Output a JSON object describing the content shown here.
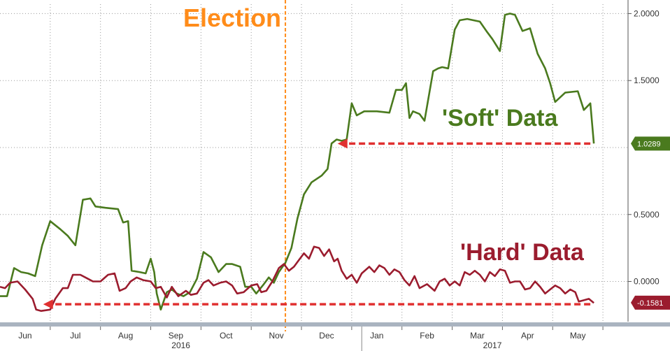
{
  "chart_data": {
    "type": "line",
    "annotations": {
      "event_label": "Election",
      "soft_label": "'Soft' Data",
      "hard_label": "'Hard' Data"
    },
    "colors": {
      "soft": "#4a7a1e",
      "hard": "#9b1c2e",
      "election": "#ff8c1a",
      "arrow": "#e03030",
      "grid": "#9a9a9a"
    },
    "y_axis": {
      "position": "right",
      "ticks": [
        {
          "v": 2.0,
          "label": "2.0000"
        },
        {
          "v": 1.5,
          "label": "1.5000"
        },
        {
          "v": 0.5,
          "label": "0.5000"
        },
        {
          "v": 0.0,
          "label": "0.0000"
        }
      ],
      "grid_values": [
        2.0,
        1.5,
        1.0,
        0.5,
        0.0
      ],
      "ylim": [
        -0.3,
        2.07
      ]
    },
    "x_axis": {
      "xlim": [
        0,
        12.5
      ],
      "months": [
        {
          "x": 0.5,
          "label": "Jun"
        },
        {
          "x": 1.5,
          "label": "Jul"
        },
        {
          "x": 2.5,
          "label": "Aug"
        },
        {
          "x": 3.5,
          "label": "Sep"
        },
        {
          "x": 4.5,
          "label": "Oct"
        },
        {
          "x": 5.5,
          "label": "Nov"
        },
        {
          "x": 6.5,
          "label": "Dec"
        },
        {
          "x": 7.5,
          "label": "Jan"
        },
        {
          "x": 8.5,
          "label": "Feb"
        },
        {
          "x": 9.5,
          "label": "Mar"
        },
        {
          "x": 10.5,
          "label": "Apr"
        },
        {
          "x": 11.5,
          "label": "May"
        }
      ],
      "years": [
        {
          "x": 3.6,
          "label": "2016"
        },
        {
          "x": 9.8,
          "label": "2017"
        }
      ],
      "year_divider": 7.2
    },
    "event_x": 5.68,
    "series": [
      {
        "name": "'Soft' Data",
        "last_value_label": "1.0289",
        "last": 1.0289,
        "points": [
          [
            0.0,
            -0.11
          ],
          [
            0.14,
            -0.11
          ],
          [
            0.28,
            0.1
          ],
          [
            0.42,
            0.07
          ],
          [
            0.56,
            0.06
          ],
          [
            0.7,
            0.04
          ],
          [
            0.84,
            0.27
          ],
          [
            1.0,
            0.45
          ],
          [
            1.2,
            0.39
          ],
          [
            1.35,
            0.34
          ],
          [
            1.5,
            0.27
          ],
          [
            1.65,
            0.61
          ],
          [
            1.8,
            0.62
          ],
          [
            1.9,
            0.56
          ],
          [
            2.1,
            0.55
          ],
          [
            2.35,
            0.54
          ],
          [
            2.45,
            0.44
          ],
          [
            2.55,
            0.45
          ],
          [
            2.62,
            0.08
          ],
          [
            2.78,
            0.07
          ],
          [
            2.9,
            0.06
          ],
          [
            3.0,
            0.17
          ],
          [
            3.07,
            0.07
          ],
          [
            3.12,
            -0.09
          ],
          [
            3.2,
            -0.21
          ],
          [
            3.32,
            -0.08
          ],
          [
            3.42,
            -0.06
          ],
          [
            3.52,
            -0.09
          ],
          [
            3.65,
            -0.11
          ],
          [
            3.78,
            -0.08
          ],
          [
            3.92,
            0.02
          ],
          [
            4.05,
            0.22
          ],
          [
            4.2,
            0.18
          ],
          [
            4.35,
            0.07
          ],
          [
            4.5,
            0.13
          ],
          [
            4.62,
            0.13
          ],
          [
            4.78,
            0.11
          ],
          [
            4.88,
            -0.04
          ],
          [
            5.0,
            -0.04
          ],
          [
            5.1,
            -0.09
          ],
          [
            5.25,
            -0.02
          ],
          [
            5.35,
            0.03
          ],
          [
            5.45,
            -0.01
          ],
          [
            5.55,
            0.07
          ],
          [
            5.68,
            0.14
          ],
          [
            5.8,
            0.25
          ],
          [
            5.92,
            0.47
          ],
          [
            6.05,
            0.65
          ],
          [
            6.2,
            0.74
          ],
          [
            6.4,
            0.79
          ],
          [
            6.52,
            0.84
          ],
          [
            6.6,
            1.03
          ],
          [
            6.7,
            1.06
          ],
          [
            6.8,
            1.05
          ],
          [
            6.9,
            1.06
          ],
          [
            7.0,
            1.33
          ],
          [
            7.1,
            1.24
          ],
          [
            7.25,
            1.27
          ],
          [
            7.5,
            1.27
          ],
          [
            7.75,
            1.26
          ],
          [
            7.88,
            1.43
          ],
          [
            8.0,
            1.43
          ],
          [
            8.08,
            1.48
          ],
          [
            8.15,
            1.22
          ],
          [
            8.22,
            1.27
          ],
          [
            8.35,
            1.25
          ],
          [
            8.45,
            1.2
          ],
          [
            8.62,
            1.57
          ],
          [
            8.72,
            1.59
          ],
          [
            8.8,
            1.6
          ],
          [
            8.92,
            1.59
          ],
          [
            9.05,
            1.88
          ],
          [
            9.15,
            1.95
          ],
          [
            9.3,
            1.96
          ],
          [
            9.55,
            1.94
          ],
          [
            9.7,
            1.86
          ],
          [
            9.8,
            1.81
          ],
          [
            9.95,
            1.72
          ],
          [
            10.05,
            1.99
          ],
          [
            10.15,
            2.0
          ],
          [
            10.25,
            1.99
          ],
          [
            10.4,
            1.87
          ],
          [
            10.55,
            1.89
          ],
          [
            10.7,
            1.7
          ],
          [
            10.85,
            1.59
          ],
          [
            10.95,
            1.48
          ],
          [
            11.05,
            1.34
          ],
          [
            11.25,
            1.41
          ],
          [
            11.5,
            1.42
          ],
          [
            11.62,
            1.28
          ],
          [
            11.75,
            1.33
          ],
          [
            11.82,
            1.03
          ]
        ]
      },
      {
        "name": "'Hard' Data",
        "last_value_label": "-0.1581",
        "last": -0.1581,
        "points": [
          [
            0.0,
            -0.04
          ],
          [
            0.1,
            -0.05
          ],
          [
            0.2,
            -0.01
          ],
          [
            0.35,
            0.0
          ],
          [
            0.5,
            -0.06
          ],
          [
            0.65,
            -0.13
          ],
          [
            0.72,
            -0.21
          ],
          [
            0.82,
            -0.22
          ],
          [
            1.0,
            -0.21
          ],
          [
            1.1,
            -0.13
          ],
          [
            1.25,
            -0.05
          ],
          [
            1.35,
            -0.05
          ],
          [
            1.45,
            0.05
          ],
          [
            1.6,
            0.05
          ],
          [
            1.75,
            0.02
          ],
          [
            1.85,
            0.0
          ],
          [
            2.0,
            0.0
          ],
          [
            2.15,
            0.05
          ],
          [
            2.28,
            0.06
          ],
          [
            2.38,
            -0.07
          ],
          [
            2.5,
            -0.05
          ],
          [
            2.6,
            0.0
          ],
          [
            2.72,
            0.03
          ],
          [
            2.85,
            0.01
          ],
          [
            3.0,
            0.0
          ],
          [
            3.1,
            -0.05
          ],
          [
            3.2,
            -0.04
          ],
          [
            3.32,
            -0.12
          ],
          [
            3.42,
            -0.04
          ],
          [
            3.55,
            -0.11
          ],
          [
            3.7,
            -0.07
          ],
          [
            3.8,
            -0.1
          ],
          [
            3.92,
            -0.09
          ],
          [
            4.05,
            -0.01
          ],
          [
            4.15,
            0.01
          ],
          [
            4.25,
            -0.03
          ],
          [
            4.38,
            -0.01
          ],
          [
            4.5,
            0.0
          ],
          [
            4.62,
            -0.03
          ],
          [
            4.72,
            -0.09
          ],
          [
            4.85,
            -0.08
          ],
          [
            5.0,
            -0.03
          ],
          [
            5.12,
            -0.02
          ],
          [
            5.2,
            -0.08
          ],
          [
            5.3,
            -0.07
          ],
          [
            5.42,
            0.0
          ],
          [
            5.55,
            0.1
          ],
          [
            5.65,
            0.13
          ],
          [
            5.75,
            0.08
          ],
          [
            5.85,
            0.11
          ],
          [
            5.95,
            0.16
          ],
          [
            6.05,
            0.21
          ],
          [
            6.15,
            0.17
          ],
          [
            6.25,
            0.26
          ],
          [
            6.35,
            0.25
          ],
          [
            6.45,
            0.19
          ],
          [
            6.55,
            0.24
          ],
          [
            6.65,
            0.15
          ],
          [
            6.72,
            0.17
          ],
          [
            6.8,
            0.08
          ],
          [
            6.9,
            0.02
          ],
          [
            7.0,
            0.05
          ],
          [
            7.1,
            -0.01
          ],
          [
            7.2,
            0.06
          ],
          [
            7.35,
            0.11
          ],
          [
            7.45,
            0.07
          ],
          [
            7.55,
            0.12
          ],
          [
            7.65,
            0.1
          ],
          [
            7.75,
            0.05
          ],
          [
            7.85,
            0.09
          ],
          [
            7.95,
            0.07
          ],
          [
            8.05,
            0.01
          ],
          [
            8.15,
            -0.03
          ],
          [
            8.25,
            0.04
          ],
          [
            8.35,
            -0.05
          ],
          [
            8.5,
            -0.02
          ],
          [
            8.65,
            -0.07
          ],
          [
            8.75,
            0.0
          ],
          [
            8.85,
            0.02
          ],
          [
            8.95,
            -0.03
          ],
          [
            9.05,
            0.0
          ],
          [
            9.15,
            -0.03
          ],
          [
            9.25,
            0.07
          ],
          [
            9.35,
            0.05
          ],
          [
            9.45,
            0.08
          ],
          [
            9.55,
            0.05
          ],
          [
            9.65,
            0.0
          ],
          [
            9.75,
            0.07
          ],
          [
            9.85,
            0.04
          ],
          [
            9.95,
            0.09
          ],
          [
            10.05,
            0.08
          ],
          [
            10.15,
            -0.01
          ],
          [
            10.25,
            0.0
          ],
          [
            10.35,
            0.0
          ],
          [
            10.45,
            -0.06
          ],
          [
            10.55,
            -0.05
          ],
          [
            10.65,
            0.0
          ],
          [
            10.75,
            -0.04
          ],
          [
            10.85,
            -0.09
          ],
          [
            10.95,
            -0.06
          ],
          [
            11.05,
            -0.03
          ],
          [
            11.15,
            -0.05
          ],
          [
            11.25,
            -0.09
          ],
          [
            11.35,
            -0.06
          ],
          [
            11.45,
            -0.08
          ],
          [
            11.52,
            -0.15
          ],
          [
            11.62,
            -0.14
          ],
          [
            11.72,
            -0.13
          ],
          [
            11.82,
            -0.16
          ]
        ]
      }
    ],
    "arrows": [
      {
        "series": 0,
        "from_x": 11.75,
        "to_x": 6.72,
        "y": 1.0289
      },
      {
        "series": 1,
        "from_x": 11.75,
        "to_x": 0.86,
        "y": -0.17
      }
    ]
  }
}
